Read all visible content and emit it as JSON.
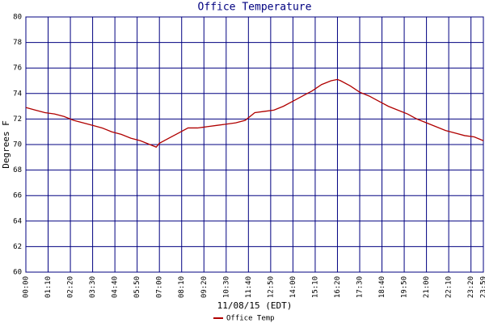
{
  "chart_data": {
    "type": "line",
    "title": "Office Temperature",
    "y_label": "Degrees F",
    "x_label": "11/08/15 (EDT)",
    "xlim": [
      0,
      1439
    ],
    "ylim": [
      60,
      80
    ],
    "yticks": [
      60,
      62,
      64,
      66,
      68,
      70,
      72,
      74,
      76,
      78,
      80
    ],
    "xticks": [
      {
        "value": 0,
        "label": "00:00"
      },
      {
        "value": 70,
        "label": "01:10"
      },
      {
        "value": 140,
        "label": "02:20"
      },
      {
        "value": 210,
        "label": "03:30"
      },
      {
        "value": 280,
        "label": "04:40"
      },
      {
        "value": 350,
        "label": "05:50"
      },
      {
        "value": 420,
        "label": "07:00"
      },
      {
        "value": 490,
        "label": "08:10"
      },
      {
        "value": 560,
        "label": "09:20"
      },
      {
        "value": 630,
        "label": "10:30"
      },
      {
        "value": 700,
        "label": "11:40"
      },
      {
        "value": 770,
        "label": "12:50"
      },
      {
        "value": 840,
        "label": "14:00"
      },
      {
        "value": 910,
        "label": "15:10"
      },
      {
        "value": 980,
        "label": "16:20"
      },
      {
        "value": 1050,
        "label": "17:30"
      },
      {
        "value": 1120,
        "label": "18:40"
      },
      {
        "value": 1190,
        "label": "19:50"
      },
      {
        "value": 1260,
        "label": "21:00"
      },
      {
        "value": 1330,
        "label": "22:10"
      },
      {
        "value": 1400,
        "label": "23:20"
      },
      {
        "value": 1439,
        "label": "23:59"
      }
    ],
    "grid": true,
    "x": [
      0,
      30,
      60,
      90,
      120,
      150,
      180,
      210,
      240,
      270,
      300,
      330,
      360,
      390,
      410,
      420,
      450,
      480,
      510,
      540,
      570,
      600,
      630,
      660,
      690,
      720,
      750,
      780,
      810,
      840,
      870,
      900,
      930,
      960,
      980,
      990,
      1020,
      1050,
      1080,
      1110,
      1140,
      1170,
      1200,
      1230,
      1260,
      1290,
      1320,
      1350,
      1380,
      1410,
      1439
    ],
    "series": [
      {
        "name": "Office Temp",
        "color": "#b00000",
        "values": [
          72.9,
          72.7,
          72.5,
          72.4,
          72.2,
          71.9,
          71.7,
          71.5,
          71.3,
          71.0,
          70.8,
          70.5,
          70.3,
          70.0,
          69.8,
          70.1,
          70.5,
          70.9,
          71.3,
          71.3,
          71.4,
          71.5,
          71.6,
          71.7,
          71.9,
          72.5,
          72.6,
          72.7,
          73.0,
          73.4,
          73.8,
          74.2,
          74.7,
          75.0,
          75.1,
          75.0,
          74.6,
          74.1,
          73.8,
          73.4,
          73.0,
          72.7,
          72.4,
          72.0,
          71.7,
          71.4,
          71.1,
          70.9,
          70.7,
          70.6,
          70.3
        ]
      }
    ]
  }
}
